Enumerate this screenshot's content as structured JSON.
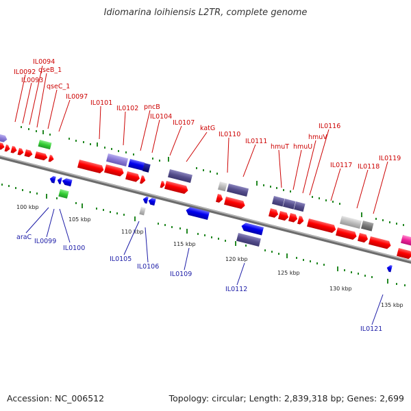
{
  "title": "Idiomarina loihiensis L2TR, complete genome",
  "footer": {
    "accession": "Accession: NC_006512",
    "topology": "Topology: circular; Length: 2,839,318 bp; Genes: 2,699"
  },
  "colors": {
    "forward_gene": "#ff0000",
    "reverse_gene": "#0000ee",
    "rna": "#33cc33",
    "pathway_gene": "#554e8c",
    "lavender_gene": "#8a7ad6",
    "gray_gene": "#bbbbbb",
    "dark_gray_gene": "#777777",
    "backbone": "#888888",
    "scale_tick": "#228822",
    "forward_label": "#cc0000",
    "reverse_label": "#1a1aa6"
  },
  "forward_labels": [
    "IL0092",
    "IL0093",
    "IL0094",
    "qseB_1",
    "qseC_1",
    "IL0097",
    "IL0101",
    "IL0102",
    "pncB",
    "IL0104",
    "IL0107",
    "katG",
    "IL0110",
    "IL0111",
    "hmuT",
    "hmuU",
    "hmuV",
    "IL0116",
    "IL0117",
    "IL0118",
    "IL0119"
  ],
  "reverse_labels": [
    "araC",
    "IL0099",
    "IL0100",
    "IL0105",
    "IL0106",
    "IL0109",
    "IL0112",
    "IL0121"
  ],
  "scale_labels": [
    "100 kbp",
    "105 kbp",
    "110 kbp",
    "115 kbp",
    "120 kbp",
    "125 kbp",
    "130 kbp",
    "135 kbp"
  ]
}
